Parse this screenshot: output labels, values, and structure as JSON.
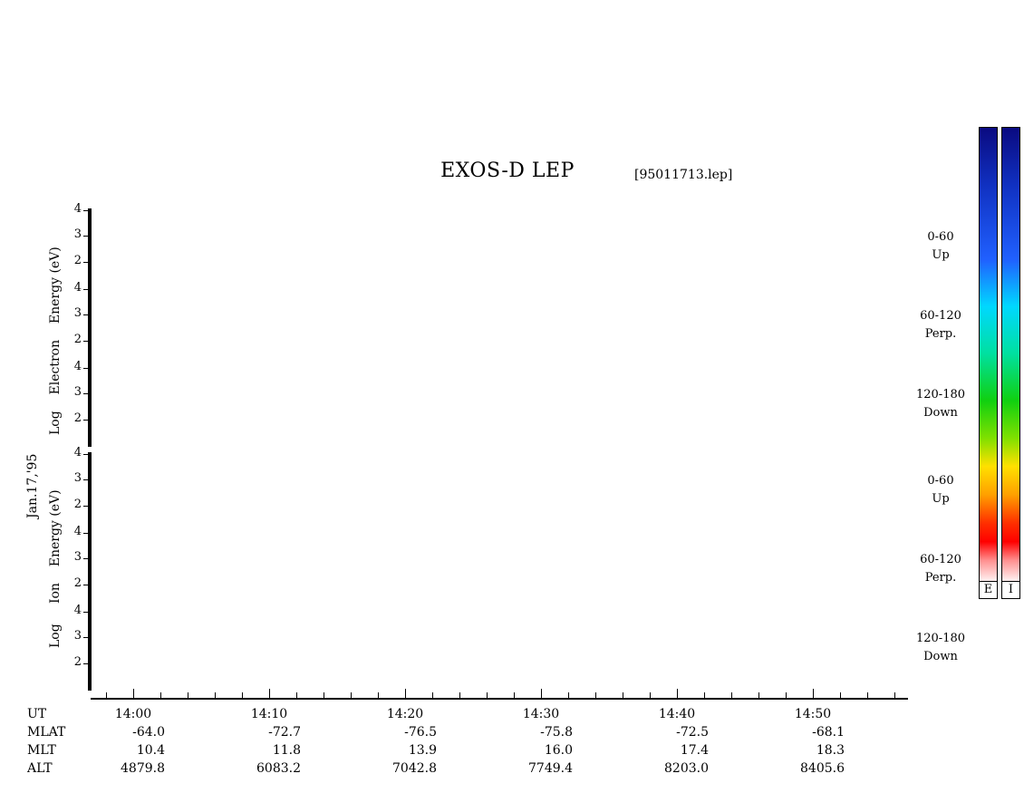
{
  "title": "EXOS-D LEP",
  "file_name": "[95011713.lep]",
  "date_label": "Jan.17,'95",
  "electron_axis_label": [
    "Log",
    "Electron",
    "Energy",
    "(eV)"
  ],
  "ion_axis_label": [
    "Log",
    "Ion",
    "Energy",
    "(eV)"
  ],
  "y_ticks": [
    "4",
    "3",
    "2"
  ],
  "panels": [
    {
      "group": "electron",
      "angle": "0-60",
      "direction": "Up"
    },
    {
      "group": "electron",
      "angle": "60-120",
      "direction": "Perp."
    },
    {
      "group": "electron",
      "angle": "120-180",
      "direction": "Down"
    },
    {
      "group": "ion",
      "angle": "0-60",
      "direction": "Up"
    },
    {
      "group": "ion",
      "angle": "60-120",
      "direction": "Perp."
    },
    {
      "group": "ion",
      "angle": "120-180",
      "direction": "Down"
    }
  ],
  "colorbar_labels": {
    "electron": "E",
    "ion": "I"
  },
  "chart_data": {
    "type": "heatmap",
    "title": "EXOS-D LEP",
    "xlabel": "UT",
    "ylabel": "Log Energy (eV)",
    "ylim": [
      1,
      4
    ],
    "x_ticks": [
      "14:00",
      "14:10",
      "14:20",
      "14:30",
      "14:40",
      "14:50"
    ],
    "ephemeris": {
      "UT": [
        "14:00",
        "14:10",
        "14:20",
        "14:30",
        "14:40",
        "14:50"
      ],
      "MLAT": [
        "-64.0",
        "-72.7",
        "-76.5",
        "-75.8",
        "-72.5",
        "-68.1"
      ],
      "MLT": [
        "10.4",
        "11.8",
        "13.9",
        "16.0",
        "17.4",
        "18.3"
      ],
      "ALT": [
        "4879.8",
        "6083.2",
        "7042.8",
        "7749.4",
        "8203.0",
        "8405.6"
      ]
    },
    "colormap": [
      "#0a0a80",
      "#2060ff",
      "#00e0ff",
      "#10d010",
      "#ffe000",
      "#ff0000",
      "#ffffff"
    ]
  }
}
